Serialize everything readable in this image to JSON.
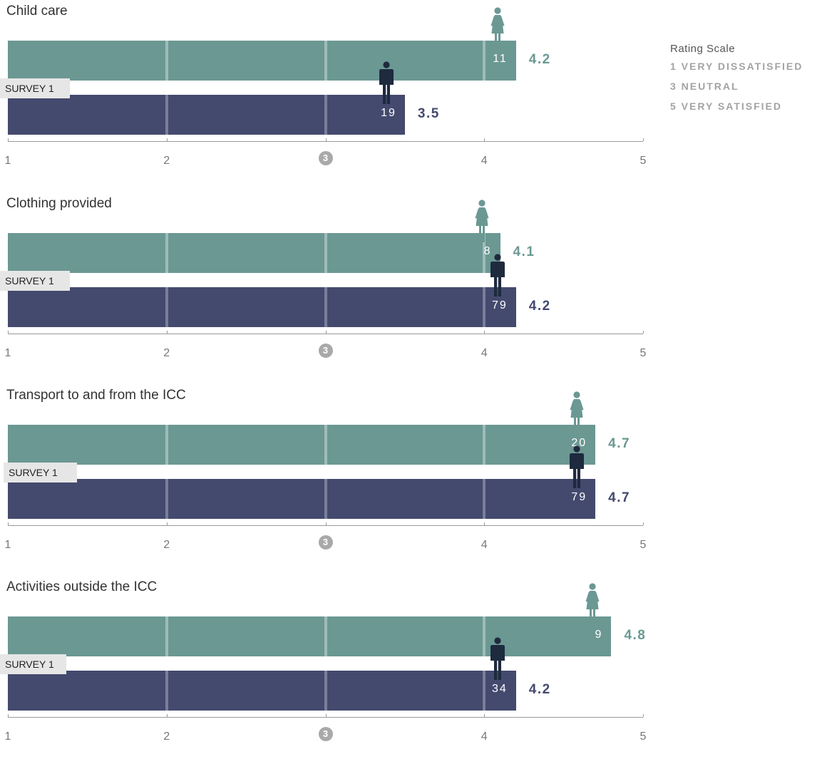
{
  "colors": {
    "women": "#6b9893",
    "men": "#444a6e",
    "women_icon": "#6b9893",
    "men_icon": "#1e2a3e"
  },
  "legend": {
    "title": "Rating Scale",
    "items": [
      "1 VERY DISSATISFIED",
      "3 NEUTRAL",
      "5 VERY SATISFIED"
    ]
  },
  "chart_data": [
    {
      "type": "bar",
      "orientation": "horizontal",
      "title": "Child care",
      "survey_label": "SURVEY 1",
      "xlim": [
        1,
        5
      ],
      "tick_labels": [
        "1",
        "2",
        "3",
        "4",
        "5"
      ],
      "series": [
        {
          "icon": "female",
          "value": 4.2,
          "value_label": "4.2",
          "count": "11"
        },
        {
          "icon": "male",
          "value": 3.5,
          "value_label": "3.5",
          "count": "19"
        }
      ]
    },
    {
      "type": "bar",
      "orientation": "horizontal",
      "title": "Clothing provided",
      "survey_label": "SURVEY 1",
      "xlim": [
        1,
        5
      ],
      "tick_labels": [
        "1",
        "2",
        "3",
        "4",
        "5"
      ],
      "series": [
        {
          "icon": "female",
          "value": 4.1,
          "value_label": "4.1",
          "count": "8"
        },
        {
          "icon": "male",
          "value": 4.2,
          "value_label": "4.2",
          "count": "79"
        }
      ]
    },
    {
      "type": "bar",
      "orientation": "horizontal",
      "title": "Transport to and from the ICC",
      "survey_label": "SURVEY 1",
      "xlim": [
        1,
        5
      ],
      "tick_labels": [
        "1",
        "2",
        "3",
        "4",
        "5"
      ],
      "series": [
        {
          "icon": "female",
          "value": 4.7,
          "value_label": "4.7",
          "count": "20"
        },
        {
          "icon": "male",
          "value": 4.7,
          "value_label": "4.7",
          "count": "79"
        }
      ]
    },
    {
      "type": "bar",
      "orientation": "horizontal",
      "title": "Activities outside the ICC",
      "survey_label": "SURVEY 1",
      "xlim": [
        1,
        5
      ],
      "tick_labels": [
        "1",
        "2",
        "3",
        "4",
        "5"
      ],
      "series": [
        {
          "icon": "female",
          "value": 4.8,
          "value_label": "4.8",
          "count": "9"
        },
        {
          "icon": "male",
          "value": 4.2,
          "value_label": "4.2",
          "count": "34"
        }
      ]
    }
  ]
}
